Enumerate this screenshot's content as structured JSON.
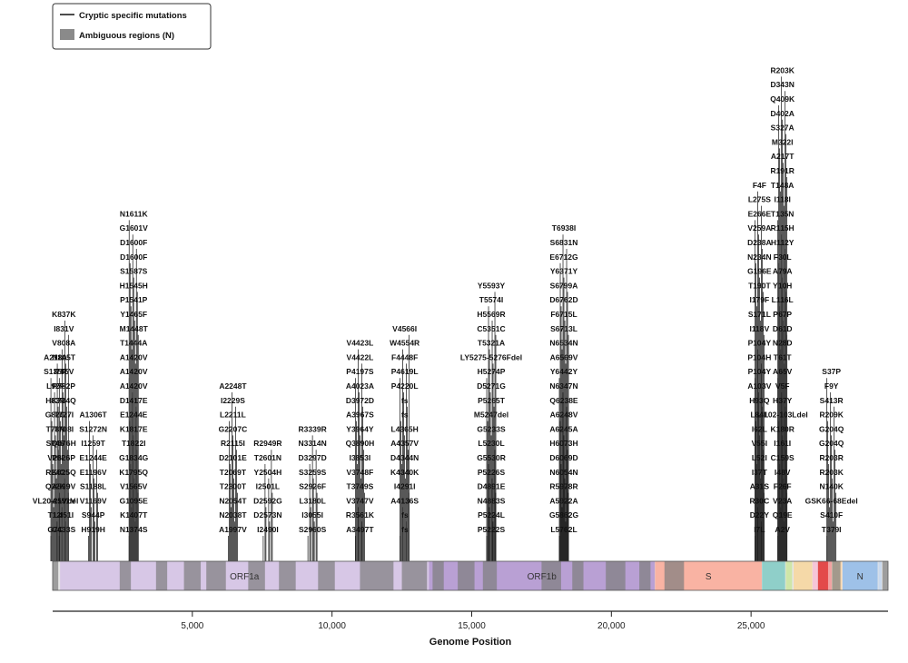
{
  "chart_data": {
    "type": "lollipop",
    "xlabel": "Genome Position",
    "xlim": [
      0,
      29903
    ],
    "xticks": [
      5000,
      10000,
      15000,
      20000,
      25000
    ],
    "xtick_labels": [
      "5,000",
      "10,000",
      "15,000",
      "20,000",
      "25,000"
    ],
    "legend": {
      "placement": "top-left",
      "entries": [
        {
          "name": "Cryptic specific mutations",
          "kind": "line",
          "color": "#111111"
        },
        {
          "name": "Ambiguous regions (N)",
          "kind": "box",
          "color": "#8a8a8a"
        }
      ]
    },
    "genes": [
      {
        "name": "ORF1a",
        "start": 266,
        "end": 13468,
        "color": "#d7c7e6",
        "label_shown": true
      },
      {
        "name": "ORF1b",
        "start": 13468,
        "end": 21555,
        "color": "#b9a0d4",
        "label_shown": true
      },
      {
        "name": "S",
        "start": 21563,
        "end": 25384,
        "color": "#f9b3a3",
        "label_shown": true
      },
      {
        "name": "ORF3a",
        "start": 25393,
        "end": 26220,
        "color": "#8fcfc9",
        "label_shown": false
      },
      {
        "name": "E",
        "start": 26245,
        "end": 26472,
        "color": "#cfe6a8",
        "label_shown": false
      },
      {
        "name": "M",
        "start": 26523,
        "end": 27191,
        "color": "#f5d9a8",
        "label_shown": false
      },
      {
        "name": "ORF6",
        "start": 27202,
        "end": 27387,
        "color": "#f6c6d8",
        "label_shown": false
      },
      {
        "name": "ORF7a",
        "start": 27394,
        "end": 27759,
        "color": "#e34a4a",
        "label_shown": false
      },
      {
        "name": "ORF7b",
        "start": 27756,
        "end": 27887,
        "color": "#f2a2a2",
        "label_shown": false
      },
      {
        "name": "ORF8",
        "start": 27894,
        "end": 28259,
        "color": "#fbd9b0",
        "label_shown": false
      },
      {
        "name": "N",
        "start": 28274,
        "end": 29533,
        "color": "#9ec1e8",
        "label_shown": true
      },
      {
        "name": "ORF10",
        "start": 29558,
        "end": 29674,
        "color": "#c9d9ee",
        "label_shown": false
      }
    ],
    "ambiguous_regions": [
      [
        0,
        200
      ],
      [
        2400,
        2800
      ],
      [
        3700,
        4100
      ],
      [
        4700,
        5300
      ],
      [
        5500,
        6200
      ],
      [
        7000,
        7600
      ],
      [
        8100,
        8700
      ],
      [
        9500,
        10100
      ],
      [
        11000,
        12200
      ],
      [
        12500,
        13400
      ],
      [
        13600,
        14000
      ],
      [
        14500,
        15100
      ],
      [
        15400,
        15900
      ],
      [
        17500,
        18200
      ],
      [
        18600,
        19000
      ],
      [
        19800,
        20500
      ],
      [
        21000,
        21400
      ],
      [
        21900,
        22600
      ],
      [
        27900,
        28200
      ],
      [
        29700,
        29903
      ]
    ],
    "mutation_clusters": [
      {
        "x": 400,
        "labels": [
          "C433S",
          "L451I",
          "A591V",
          "A599V",
          "K625Q",
          "P626P",
          "Q676H",
          "T708I",
          "T727I",
          "K734Q",
          "P782P",
          "I785V",
          "N805T",
          "V808A",
          "I831V",
          "K837K"
        ]
      },
      {
        "x": 1450,
        "labels": [
          "H919H",
          "S944P",
          "V1169V",
          "S1188L",
          "E1196V",
          "E1244E",
          "I1259T",
          "S1272N",
          "A1306T"
        ]
      },
      {
        "x": 2900,
        "labels": [
          "N1374S",
          "K1407T",
          "G1095E",
          "V1565V",
          "K1795Q",
          "G1834G",
          "T1822I",
          "K1817E",
          "E1244E",
          "D1417E",
          "A1420V",
          "A1420V",
          "A1420V",
          "T1444A",
          "M1448T",
          "Y1465F",
          "P1541P",
          "H1545H",
          "S1587S",
          "D1600F",
          "D1600F",
          "G1601V",
          "N1611K"
        ]
      },
      {
        "x": 6450,
        "labels": [
          "A1997V",
          "N2038T",
          "N2054T",
          "T2300T",
          "T2069T",
          "D2101E",
          "R2115I",
          "G2207C",
          "L2211L",
          "I2229S",
          "A2248T"
        ]
      },
      {
        "x": 7700,
        "labels": [
          "I2490I",
          "D2573N",
          "D2592G",
          "I2501L",
          "Y2504H",
          "T2601N",
          "R2949R"
        ]
      },
      {
        "x": 9300,
        "labels": [
          "S2960S",
          "I3055I",
          "L3180L",
          "S2926F",
          "S3259S",
          "D3297D",
          "N3314N",
          "R3339R"
        ]
      },
      {
        "x": 11000,
        "labels": [
          "A3497T",
          "R3561K",
          "V3747V",
          "T3749S",
          "V3748F",
          "I3853I",
          "Q3890H",
          "Y3964Y",
          "A3967S",
          "D3972D",
          "A4023A",
          "P4197S",
          "V4422L",
          "V4423L"
        ]
      },
      {
        "x": 12600,
        "labels": [
          "fs",
          "fs",
          "A4136S",
          "I4291I",
          "K4340K",
          "D4344N",
          "A4357V",
          "L4365H",
          "fs",
          "fs",
          "P4220L",
          "P4619L",
          "F4448F",
          "W4554R",
          "V4566I"
        ]
      },
      {
        "x": 15700,
        "labels": [
          "P5222S",
          "P5224L",
          "N4883S",
          "D4891E",
          "P5226S",
          "G5530R",
          "L5230L",
          "G5233S",
          "M5247del",
          "P5265T",
          "D5271G",
          "H5274P",
          "LY5275-5276Fdel",
          "T5321A",
          "C5351C",
          "H5569R",
          "T5574I",
          "Y5593Y"
        ]
      },
      {
        "x": 18300,
        "labels": [
          "L5762L",
          "G5862G",
          "A5922A",
          "R5978R",
          "N6054N",
          "D6069D",
          "H6073H",
          "A6245A",
          "A6248V",
          "Q6238E",
          "N6347N",
          "Y6442Y",
          "A6569V",
          "N6534N",
          "S6713L",
          "F6715L",
          "D6762D",
          "S6799A",
          "Y6371Y",
          "E6712G",
          "S6831N",
          "T6938I"
        ]
      },
      {
        "x": 25300,
        "labels": [
          "I7L",
          "D22Y",
          "R30C",
          "A31S",
          "I37T",
          "L52I",
          "V55I",
          "I62L",
          "L84L",
          "H93Q",
          "A103V",
          "P104Y",
          "P104H",
          "P104Y",
          "I118V",
          "S171L",
          "I179F",
          "T190T",
          "G196E",
          "N234N",
          "D238A",
          "V259A",
          "E266E",
          "L275S",
          "F4F"
        ]
      },
      {
        "x": 27000,
        "labels": [
          "A2V",
          "Q19E",
          "V23A",
          "F26F",
          "I48V",
          "C159S",
          "I161I",
          "K180R",
          "LI102-103Ldel",
          "H37Y",
          "V5F",
          "A65V",
          "T61T",
          "N28D",
          "D61D",
          "P67P",
          "L116L",
          "Y10H",
          "A79A",
          "F30L",
          "H112Y",
          "R115H",
          "T135N",
          "I118I",
          "T148A",
          "R191R",
          "A217T",
          "M322I",
          "S327A",
          "D402A",
          "Q409K",
          "D343N",
          "R203K",
          "T379I",
          "S410F",
          "GSK66-68Edel",
          "N140K",
          "R203K",
          "R203R",
          "G204Q",
          "G204Q",
          "R209K",
          "S413R",
          "F9Y",
          "S37P"
        ]
      },
      {
        "x": 100,
        "labels": [
          "G7C",
          "T12I",
          "VL20-21Vdel",
          "Q22K",
          "R24C",
          "V28I",
          "S74S",
          "T78N",
          "G82G",
          "H83R",
          "L92F",
          "S135R",
          "A211A"
        ]
      }
    ]
  }
}
